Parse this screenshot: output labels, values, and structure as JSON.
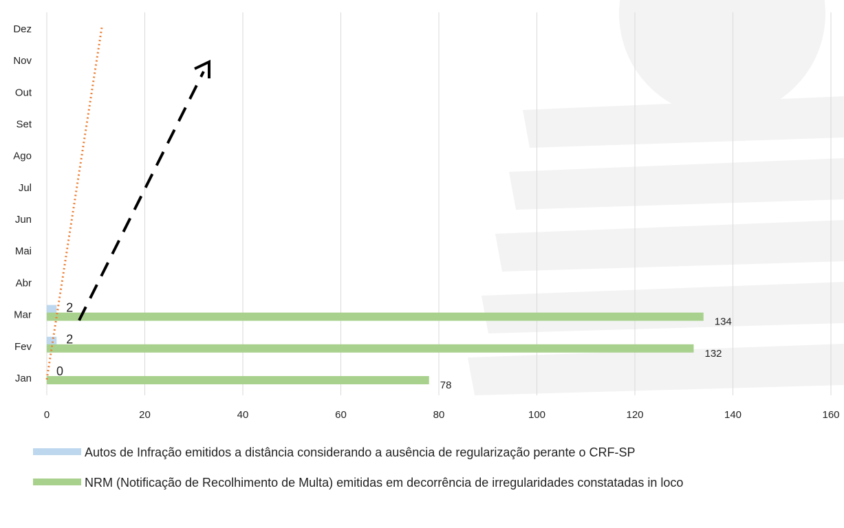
{
  "chart_data": {
    "type": "bar",
    "orientation": "horizontal",
    "categories": [
      "Jan",
      "Fev",
      "Mar",
      "Abr",
      "Mai",
      "Jun",
      "Jul",
      "Ago",
      "Set",
      "Out",
      "Nov",
      "Dez"
    ],
    "series": [
      {
        "name": "Autos de Infração emitidos a distância considerando a ausência de regularização perante o CRF-SP",
        "color": "#bdd7ee",
        "values": [
          0,
          2,
          2,
          null,
          null,
          null,
          null,
          null,
          null,
          null,
          null,
          null
        ]
      },
      {
        "name": "NRM (Notificação de Recolhimento de Multa) emitidas em decorrência de irregularidades constatadas in loco",
        "color": "#a9d18e",
        "values": [
          78,
          132,
          134,
          null,
          null,
          null,
          null,
          null,
          null,
          null,
          null,
          null
        ]
      }
    ],
    "xlim": [
      0,
      160
    ],
    "xticks": [
      0,
      20,
      40,
      60,
      80,
      100,
      120,
      140,
      160
    ],
    "grid": true
  }
}
